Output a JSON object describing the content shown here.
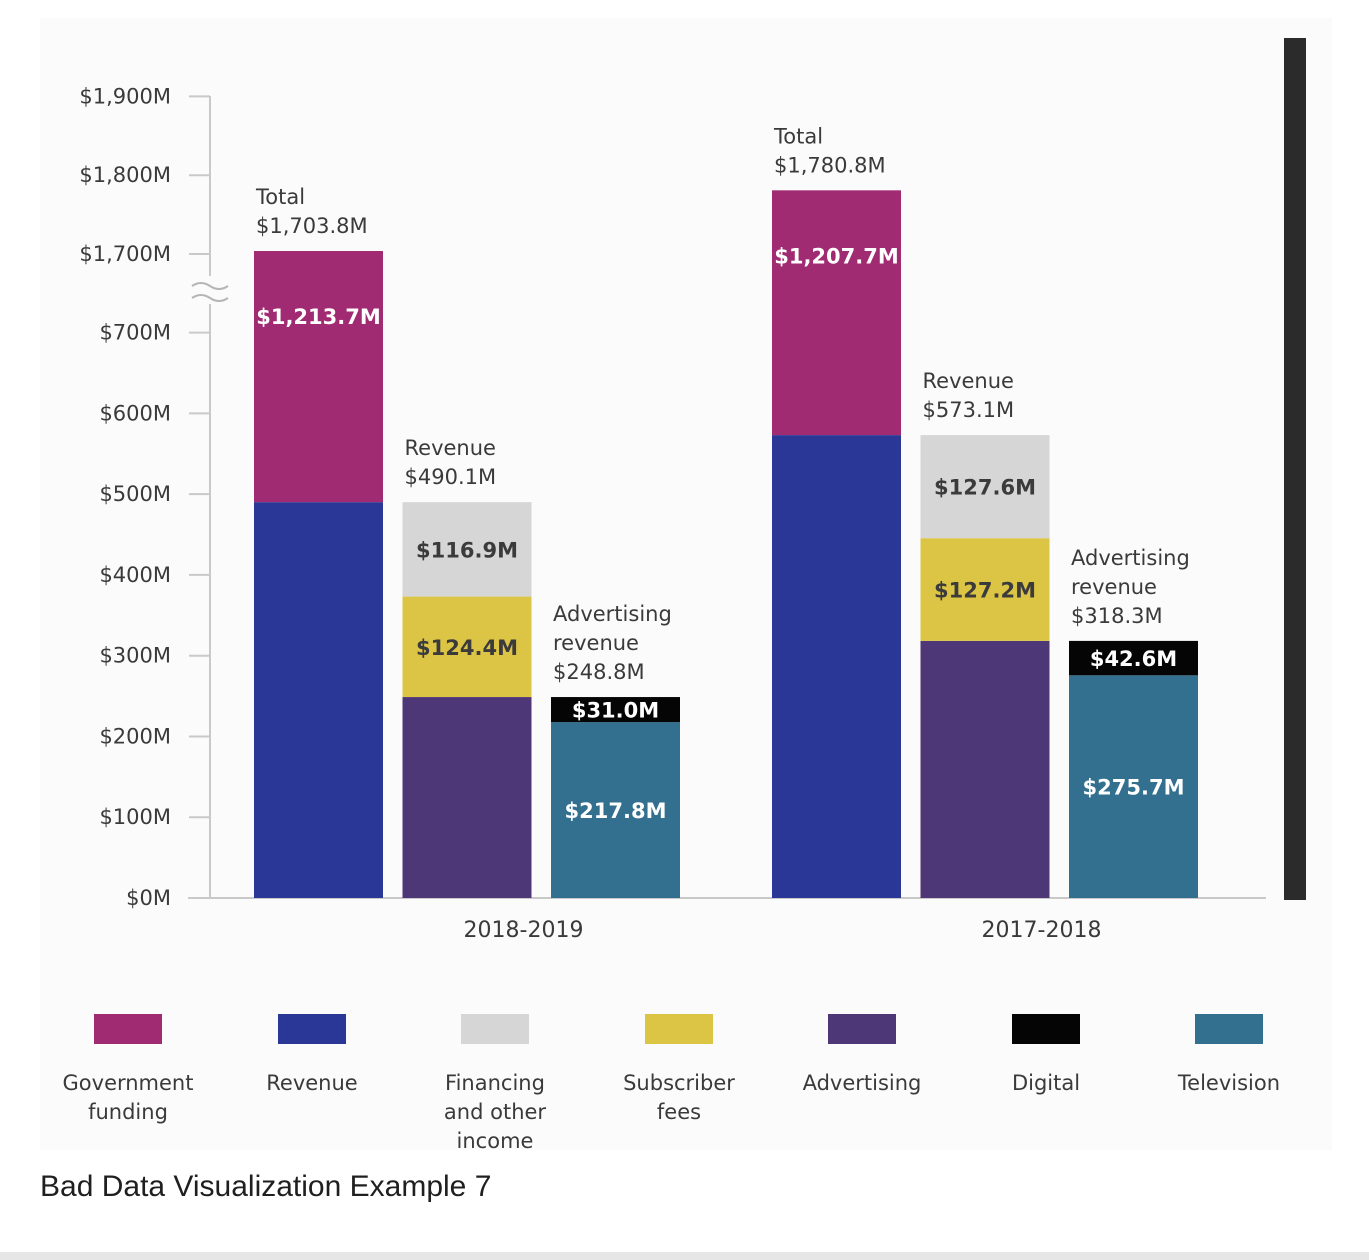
{
  "caption": "Bad Data Visualization Example 7",
  "chart_data": {
    "type": "bar",
    "stacked": true,
    "y_axis_break": {
      "from": 700,
      "to": 1700
    },
    "yticks": [
      "$1,900M",
      "$1,800M",
      "$1,700M",
      "$700M",
      "$600M",
      "$500M",
      "$400M",
      "$300M",
      "$200M",
      "$100M",
      "$0M"
    ],
    "ytick_values": [
      1900,
      1800,
      1700,
      700,
      600,
      500,
      400,
      300,
      200,
      100,
      0
    ],
    "ylim": [
      0,
      1900
    ],
    "grid": false,
    "legend_position": "bottom",
    "legend": [
      {
        "name": "Government funding",
        "lines": [
          "Government",
          "funding"
        ],
        "color": "#a02b72"
      },
      {
        "name": "Revenue",
        "lines": [
          "Revenue"
        ],
        "color": "#2b3796"
      },
      {
        "name": "Financing and other income",
        "lines": [
          "Financing",
          "and other",
          "income"
        ],
        "color": "#d6d6d6"
      },
      {
        "name": "Subscriber fees",
        "lines": [
          "Subscriber",
          "fees"
        ],
        "color": "#dcc445"
      },
      {
        "name": "Advertising",
        "lines": [
          "Advertising"
        ],
        "color": "#4e3777"
      },
      {
        "name": "Digital",
        "lines": [
          "Digital"
        ],
        "color": "#050505"
      },
      {
        "name": "Television",
        "lines": [
          "Television"
        ],
        "color": "#33708f"
      }
    ],
    "groups": [
      {
        "category": "2018-2019",
        "bars": [
          {
            "annotation": [
              "Total",
              "$1,703.8M"
            ],
            "total": 1703.8,
            "segments": [
              {
                "series": "Revenue",
                "value": 490.1,
                "color": "#2b3796",
                "label": ""
              },
              {
                "series": "Government funding",
                "value": 1213.7,
                "color": "#a02b72",
                "label": "$1,213.7M"
              }
            ]
          },
          {
            "annotation": [
              "Revenue",
              "$490.1M"
            ],
            "total": 490.1,
            "segments": [
              {
                "series": "Advertising",
                "value": 248.8,
                "color": "#4e3777",
                "label": ""
              },
              {
                "series": "Subscriber fees",
                "value": 124.4,
                "color": "#dcc445",
                "label": "$124.4M"
              },
              {
                "series": "Financing and other income",
                "value": 116.9,
                "color": "#d6d6d6",
                "label": "$116.9M"
              }
            ]
          },
          {
            "annotation": [
              "Advertising",
              "revenue",
              "$248.8M"
            ],
            "total": 248.8,
            "segments": [
              {
                "series": "Television",
                "value": 217.8,
                "color": "#33708f",
                "label": "$217.8M"
              },
              {
                "series": "Digital",
                "value": 31.0,
                "color": "#050505",
                "label": "$31.0M"
              }
            ]
          }
        ]
      },
      {
        "category": "2017-2018",
        "bars": [
          {
            "annotation": [
              "Total",
              "$1,780.8M"
            ],
            "total": 1780.8,
            "segments": [
              {
                "series": "Revenue",
                "value": 573.1,
                "color": "#2b3796",
                "label": ""
              },
              {
                "series": "Government funding",
                "value": 1207.7,
                "color": "#a02b72",
                "label": "$1,207.7M"
              }
            ]
          },
          {
            "annotation": [
              "Revenue",
              "$573.1M"
            ],
            "total": 573.1,
            "segments": [
              {
                "series": "Advertising",
                "value": 318.3,
                "color": "#4e3777",
                "label": ""
              },
              {
                "series": "Subscriber fees",
                "value": 127.2,
                "color": "#dcc445",
                "label": "$127.2M"
              },
              {
                "series": "Financing and other income",
                "value": 127.6,
                "color": "#d6d6d6",
                "label": "$127.6M"
              }
            ]
          },
          {
            "annotation": [
              "Advertising",
              "revenue",
              "$318.3M"
            ],
            "total": 318.3,
            "segments": [
              {
                "series": "Television",
                "value": 275.7,
                "color": "#33708f",
                "label": "$275.7M"
              },
              {
                "series": "Digital",
                "value": 42.6,
                "color": "#050505",
                "label": "$42.6M"
              }
            ]
          }
        ]
      }
    ]
  }
}
